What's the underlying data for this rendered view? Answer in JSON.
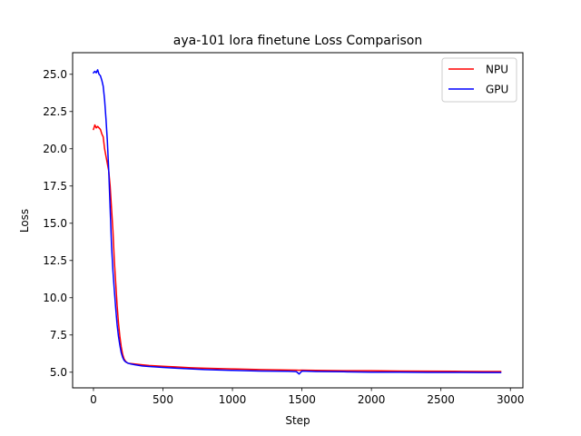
{
  "chart_data": {
    "type": "line",
    "title": "aya-101 lora finetune Loss Comparison",
    "xlabel": "Step",
    "ylabel": "Loss",
    "xlim": [
      -150,
      3090
    ],
    "ylim": [
      3.95,
      26.45
    ],
    "xticks": [
      0,
      500,
      1000,
      1500,
      2000,
      2500,
      3000
    ],
    "xtick_labels": [
      "0",
      "500",
      "1000",
      "1500",
      "2000",
      "2500",
      "3000"
    ],
    "yticks": [
      5.0,
      7.5,
      10.0,
      12.5,
      15.0,
      17.5,
      20.0,
      22.5,
      25.0
    ],
    "ytick_labels": [
      "5.0",
      "7.5",
      "10.0",
      "12.5",
      "15.0",
      "17.5",
      "20.0",
      "22.5",
      "25.0"
    ],
    "grid": false,
    "legend": "top-right",
    "series": [
      {
        "name": "NPU",
        "color": "#ff0000",
        "x": [
          0,
          10,
          20,
          30,
          40,
          50,
          60,
          70,
          80,
          90,
          100,
          110,
          120,
          130,
          140,
          150,
          160,
          170,
          180,
          190,
          200,
          210,
          220,
          230,
          240,
          250,
          270,
          300,
          350,
          400,
          500,
          600,
          700,
          800,
          1000,
          1200,
          1400,
          1460,
          1480,
          1500,
          1600,
          1800,
          2000,
          2200,
          2400,
          2600,
          2800,
          2930
        ],
        "y": [
          21.3,
          21.6,
          21.4,
          21.5,
          21.4,
          21.3,
          21.0,
          20.8,
          20.0,
          19.5,
          19.0,
          18.5,
          17.5,
          16.0,
          14.5,
          12.5,
          11.0,
          9.5,
          8.3,
          7.4,
          6.7,
          6.2,
          5.9,
          5.75,
          5.65,
          5.6,
          5.58,
          5.55,
          5.5,
          5.45,
          5.4,
          5.35,
          5.3,
          5.27,
          5.22,
          5.18,
          5.15,
          5.14,
          5.13,
          5.14,
          5.12,
          5.1,
          5.1,
          5.08,
          5.07,
          5.06,
          5.05,
          5.05
        ]
      },
      {
        "name": "GPU",
        "color": "#0000ff",
        "x": [
          0,
          10,
          20,
          30,
          40,
          50,
          60,
          70,
          80,
          90,
          100,
          110,
          120,
          130,
          140,
          150,
          160,
          170,
          180,
          190,
          200,
          210,
          220,
          230,
          240,
          250,
          270,
          300,
          350,
          400,
          500,
          600,
          700,
          800,
          1000,
          1200,
          1400,
          1460,
          1480,
          1500,
          1600,
          1800,
          2000,
          2200,
          2400,
          2600,
          2800,
          2930
        ],
        "y": [
          25.1,
          25.2,
          25.1,
          25.3,
          25.0,
          24.9,
          24.6,
          24.2,
          23.3,
          22.0,
          20.5,
          18.5,
          16.0,
          13.5,
          11.8,
          10.5,
          9.3,
          8.2,
          7.4,
          6.8,
          6.3,
          6.0,
          5.8,
          5.7,
          5.65,
          5.6,
          5.55,
          5.5,
          5.42,
          5.38,
          5.32,
          5.27,
          5.22,
          5.18,
          5.12,
          5.08,
          5.06,
          5.04,
          4.88,
          5.08,
          5.05,
          5.03,
          5.0,
          5.0,
          4.99,
          4.99,
          4.98,
          4.98
        ]
      }
    ]
  }
}
